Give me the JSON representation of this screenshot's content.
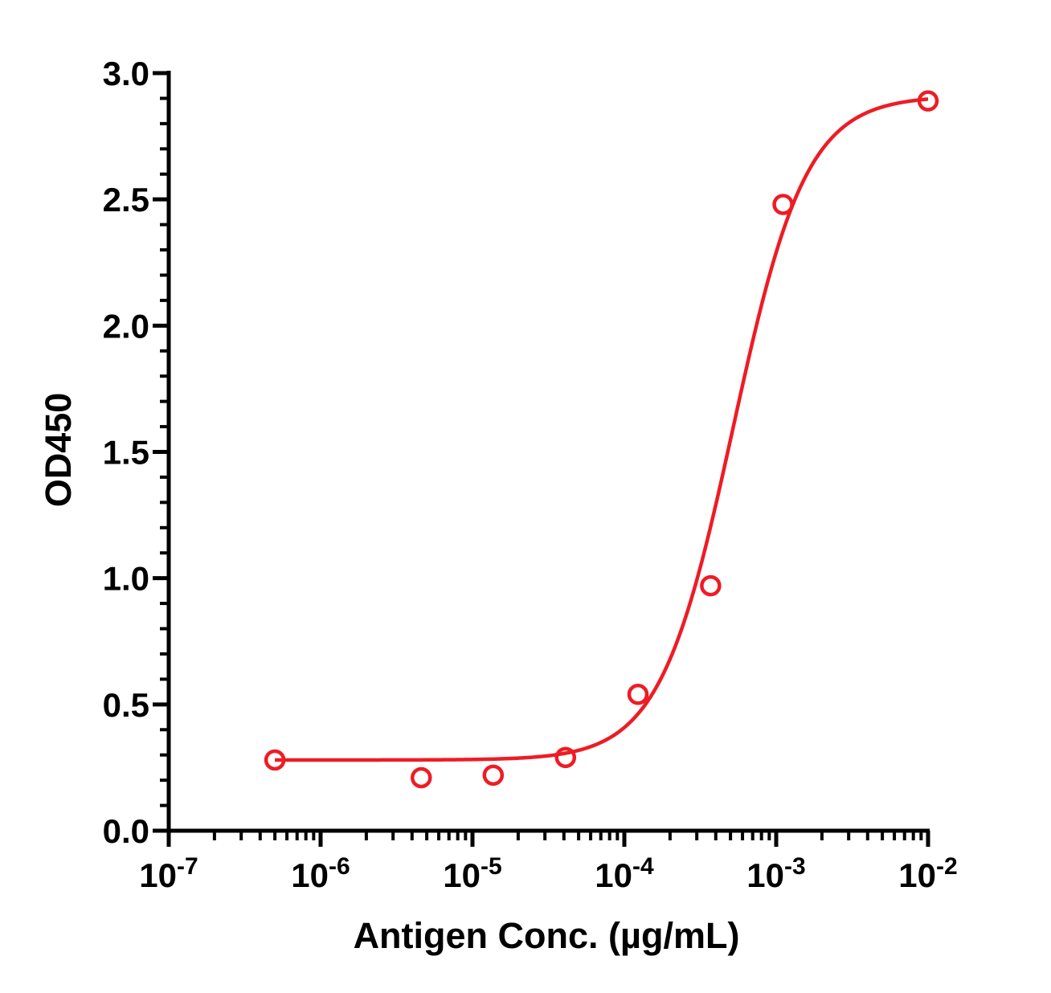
{
  "chart_data": {
    "type": "scatter",
    "title": "",
    "xlabel": "Antigen Conc. (µg/mL)",
    "ylabel": "OD450",
    "x_scale": "log",
    "xlim": [
      1e-07,
      0.01
    ],
    "ylim": [
      0,
      3.0
    ],
    "x_ticks": [
      {
        "value": 1e-07,
        "base": "10",
        "exp": "-7"
      },
      {
        "value": 1e-06,
        "base": "10",
        "exp": "-6"
      },
      {
        "value": 1e-05,
        "base": "10",
        "exp": "-5"
      },
      {
        "value": 0.0001,
        "base": "10",
        "exp": "-4"
      },
      {
        "value": 0.001,
        "base": "10",
        "exp": "-3"
      },
      {
        "value": 0.01,
        "base": "10",
        "exp": "-2"
      }
    ],
    "y_ticks": [
      {
        "value": 0.0,
        "label": "0.0"
      },
      {
        "value": 0.5,
        "label": "0.5"
      },
      {
        "value": 1.0,
        "label": "1.0"
      },
      {
        "value": 1.5,
        "label": "1.5"
      },
      {
        "value": 2.0,
        "label": "2.0"
      },
      {
        "value": 2.5,
        "label": "2.5"
      },
      {
        "value": 3.0,
        "label": "3.0"
      }
    ],
    "grid": false,
    "legend": "none",
    "series": [
      {
        "color": "#ee1c25",
        "marker": "open-circle",
        "points": [
          {
            "x": 5e-07,
            "y": 0.28
          },
          {
            "x": 4.6e-06,
            "y": 0.21
          },
          {
            "x": 1.37e-05,
            "y": 0.22
          },
          {
            "x": 4.1e-05,
            "y": 0.29
          },
          {
            "x": 0.000123,
            "y": 0.54
          },
          {
            "x": 0.00037,
            "y": 0.97
          },
          {
            "x": 0.00111,
            "y": 2.48
          },
          {
            "x": 0.01,
            "y": 2.89
          }
        ],
        "fit": {
          "model": "4PL",
          "bottom": 0.28,
          "top": 2.91,
          "ec50": 0.00052,
          "hill": 1.8,
          "x_range": [
            5e-07,
            0.01
          ]
        }
      }
    ]
  }
}
